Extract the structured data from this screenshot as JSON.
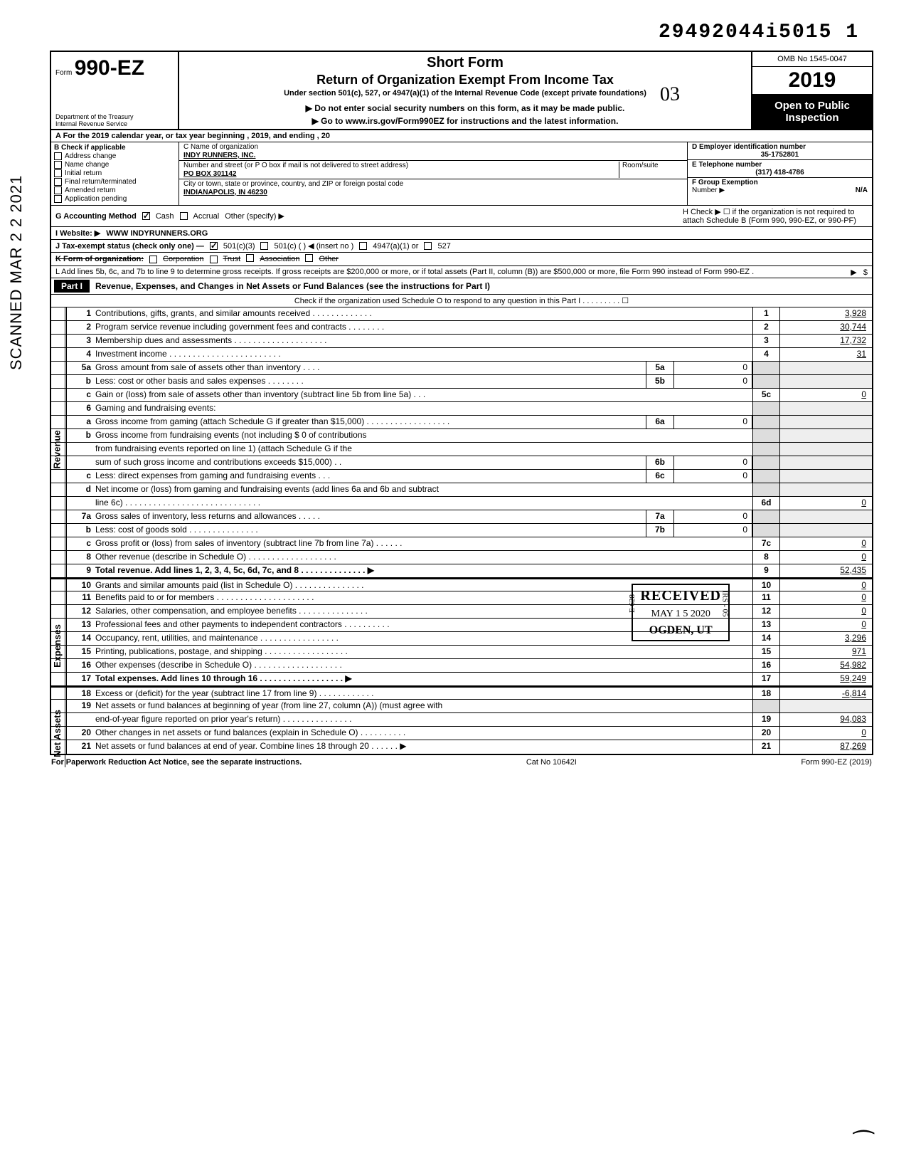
{
  "doc_number": "29492044i5015  1",
  "scan_stamp": "SCANNED MAR 2 2 2021",
  "header": {
    "form_prefix": "Form",
    "form_no": "990-EZ",
    "dept": "Department of the Treasury\nInternal Revenue Service",
    "title1": "Short Form",
    "title2": "Return of Organization Exempt From Income Tax",
    "subtitle": "Under section 501(c), 527, or 4947(a)(1) of the Internal Revenue Code (except private foundations)",
    "instr1": "▶ Do not enter social security numbers on this form, as it may be made public.",
    "instr2": "▶ Go to www.irs.gov/Form990EZ for instructions and the latest information.",
    "omb": "OMB No 1545-0047",
    "year": "2019",
    "open1": "Open to Public",
    "open2": "Inspection"
  },
  "line_a": "A  For the 2019 calendar year, or tax year beginning                                               , 2019, and ending                                          , 20",
  "sec_b": {
    "title": "B  Check if applicable",
    "items": [
      "Address change",
      "Name change",
      "Initial return",
      "Final return/terminated",
      "Amended return",
      "Application pending"
    ]
  },
  "sec_c": {
    "name_label": "C  Name of organization",
    "name": "INDY RUNNERS, INC.",
    "addr_label": "Number and street (or P O  box if mail is not delivered to street address)",
    "addr": "PO BOX 301142",
    "city_label": "City or town, state or province, country, and ZIP or foreign postal code",
    "city": "INDIANAPOLIS, IN 46230",
    "room_label": "Room/suite"
  },
  "sec_d": {
    "ein_label": "D Employer identification number",
    "ein": "35-1752801",
    "tel_label": "E Telephone number",
    "tel": "(317) 418-4786",
    "ge_label": "F Group Exemption",
    "ge_label2": "Number ▶",
    "ge": "N/A"
  },
  "line_g": {
    "label": "G  Accounting Method",
    "cash": "Cash",
    "accrual": "Accrual",
    "other": "Other (specify) ▶"
  },
  "line_h": {
    "text": "H  Check ▶ ☐ if the organization is not required to attach Schedule B (Form 990, 990-EZ, or 990-PF)"
  },
  "line_i": {
    "label": "I   Website: ▶",
    "val": "WWW INDYRUNNERS.ORG"
  },
  "line_j": {
    "label": "J  Tax-exempt status (check only one) —",
    "c3": "501(c)(3)",
    "c": "501(c) (          ) ◀ (insert no )",
    "a": "4947(a)(1) or",
    "s": "527"
  },
  "line_k": {
    "label": "K  Form of organization:",
    "corp": "Corporation",
    "trust": "Trust",
    "assoc": "Association",
    "other": "Other"
  },
  "line_l": "L  Add lines 5b, 6c, and 7b to line 9 to determine gross receipts. If gross receipts are $200,000 or more, or if total assets (Part II, column (B)) are $500,000 or more, file Form 990 instead of Form 990-EZ .",
  "part1": {
    "label": "Part I",
    "title": "Revenue, Expenses, and Changes in Net Assets or Fund Balances (see the instructions for Part I)",
    "schedO": "Check if the organization used Schedule O to respond to any question in this Part I  .   .   .   .   .   .   .   .   .   ☐"
  },
  "section_labels": {
    "rev": "Revenue",
    "exp": "Expenses",
    "na": "Net Assets"
  },
  "lines": {
    "1": {
      "n": "1",
      "d": "Contributions, gifts, grants, and similar amounts received .   .   .   .   .   .   .   .   .   .   .   .   .",
      "rn": "1",
      "rv": "3,928"
    },
    "2": {
      "n": "2",
      "d": "Program service revenue including government fees and contracts      .   .   .   .   .   .   .   .",
      "rn": "2",
      "rv": "30,744"
    },
    "3": {
      "n": "3",
      "d": "Membership dues and assessments .   .   .   .   .   .   .   .   .   .   .   .   .   .   .   .   .   .   .   .",
      "rn": "3",
      "rv": "17,732"
    },
    "4": {
      "n": "4",
      "d": "Investment income     .   .   .   .   .   .   .   .   .   .   .   .   .   .   .   .   .   .   .   .   .   .   .   .",
      "rn": "4",
      "rv": "31"
    },
    "5a": {
      "n": "5a",
      "d": "Gross amount from sale of assets other than inventory     .   .   .   .",
      "sn": "5a",
      "sv": "0"
    },
    "5b": {
      "n": "b",
      "d": "Less: cost or other basis and sales expenses .   .   .   .   .   .   .   .",
      "sn": "5b",
      "sv": "0"
    },
    "5c": {
      "n": "c",
      "d": "Gain or (loss) from sale of assets other than inventory (subtract line 5b from line 5a)   .   .   .",
      "rn": "5c",
      "rv": "0"
    },
    "6": {
      "n": "6",
      "d": "Gaming and fundraising events:"
    },
    "6a": {
      "n": "a",
      "d": "Gross income from gaming (attach Schedule G if greater than $15,000) .   .   .    .   .   .   .   .   .   .   .   .   .   .   .   .   .   .",
      "sn": "6a",
      "sv": "0"
    },
    "6b1": {
      "n": "b",
      "d": "Gross income from fundraising events (not including  $                       0 of contributions"
    },
    "6b2": {
      "n": "",
      "d": "from fundraising events reported on line 1) (attach Schedule G if the"
    },
    "6b3": {
      "n": "",
      "d": "sum of such gross income and contributions exceeds $15,000) .   .",
      "sn": "6b",
      "sv": "0"
    },
    "6c": {
      "n": "c",
      "d": "Less: direct expenses from gaming and fundraising events    .   .   .",
      "sn": "6c",
      "sv": "0"
    },
    "6d1": {
      "n": "d",
      "d": "Net income or (loss) from gaming and fundraising events (add lines 6a and 6b and subtract"
    },
    "6d2": {
      "n": "",
      "d": "line 6c)     .   .   .   .   .   .   .   .   .   .   .   .   .   .   .   .   .   .   .   .   .   .   .   .   .   .   .   .   .",
      "rn": "6d",
      "rv": "0"
    },
    "7a": {
      "n": "7a",
      "d": "Gross sales of inventory, less returns and allowances   .   .   .   .   .",
      "sn": "7a",
      "sv": "0"
    },
    "7b": {
      "n": "b",
      "d": "Less: cost of goods sold      .   .   .   .   .   .   .   .   .   .   .   .   .   .   .",
      "sn": "7b",
      "sv": "0"
    },
    "7c": {
      "n": "c",
      "d": "Gross profit or (loss) from sales of inventory (subtract line 7b from line 7a)    .   .   .     .   .   .",
      "rn": "7c",
      "rv": "0"
    },
    "8": {
      "n": "8",
      "d": "Other revenue (describe in Schedule O) .     .   .   .   .   .   .   .   .   .   .   .   .   .   .   .   .   .   .",
      "rn": "8",
      "rv": "0"
    },
    "9": {
      "n": "9",
      "d": "Total revenue. Add lines 1, 2, 3, 4, 5c, 6d, 7c, and 8   .   .   .   .   .   .   .   .   .   .   .   .   .   .  ▶",
      "rn": "9",
      "rv": "52,435",
      "bold": true
    },
    "10": {
      "n": "10",
      "d": "Grants and similar amounts paid (list in Schedule O)   .   .   .   .   .   .   .   .   .   .   .   .   .   .   .",
      "rn": "10",
      "rv": "0"
    },
    "11": {
      "n": "11",
      "d": "Benefits paid to or for members    .   .   .   .   .   .   .   .   .   .   .   .   .   .   .   .   .   .   .   .   .",
      "rn": "11",
      "rv": "0"
    },
    "12": {
      "n": "12",
      "d": "Salaries, other compensation, and employee benefits .   .   .   .   .   .   .   .   .   .   .   .   .   .   .",
      "rn": "12",
      "rv": "0"
    },
    "13": {
      "n": "13",
      "d": "Professional fees and other payments to independent contractors  .   .   .   .   .   .   .   .   .   .",
      "rn": "13",
      "rv": "0"
    },
    "14": {
      "n": "14",
      "d": "Occupancy, rent, utilities, and maintenance     .   .   .   .   .   .   .   .   .   .   .   .   .   .   .   .   .",
      "rn": "14",
      "rv": "3,296"
    },
    "15": {
      "n": "15",
      "d": "Printing, publications, postage, and shipping .   .   .   .   .   .   .   .   .   .   .   .   .   .   .   .   .   .",
      "rn": "15",
      "rv": "971"
    },
    "16": {
      "n": "16",
      "d": "Other expenses (describe in Schedule O)  .   .   .   .   .   .   .   .   .   .   .   .   .   .   .   .   .   .   .",
      "rn": "16",
      "rv": "54,982"
    },
    "17": {
      "n": "17",
      "d": "Total expenses. Add lines 10 through 16  .   .   .   .   .   .   .   .   .   .   .   .   .   .   .   .   .   .  ▶",
      "rn": "17",
      "rv": "59,249",
      "bold": true
    },
    "18": {
      "n": "18",
      "d": "Excess or (deficit) for the year (subtract line 17 from line 9)     .   .   .   .   .   .   .   .   .   .   .   .",
      "rn": "18",
      "rv": "-6,814"
    },
    "19a": {
      "n": "19",
      "d": "Net assets or fund balances at beginning of year (from line 27, column (A)) (must agree with"
    },
    "19b": {
      "n": "",
      "d": "end-of-year figure reported on prior year's return)     .   .   .   .   .   .   .   .   .   .   .   .   .   .   .",
      "rn": "19",
      "rv": "94,083"
    },
    "20": {
      "n": "20",
      "d": "Other changes in net assets or fund balances (explain in Schedule O) .   .   .   .   .   .   .   .   .   .",
      "rn": "20",
      "rv": "0"
    },
    "21": {
      "n": "21",
      "d": "Net assets or fund balances at end of year. Combine lines 18 through 20    .   .   .   .   .   .  ▶",
      "rn": "21",
      "rv": "87,269"
    }
  },
  "footer": {
    "left": "For Paperwork Reduction Act Notice, see the separate instructions.",
    "mid": "Cat  No  10642I",
    "right": "Form 990-EZ (2019)"
  },
  "stamp": {
    "r1": "RECEIVED",
    "r2": "MAY 1 5 2020",
    "r3": "OGDEN, UT",
    "sl": "E 628",
    "sr": "IRS - 05"
  },
  "hand_03": "03",
  "initial": "⁀"
}
